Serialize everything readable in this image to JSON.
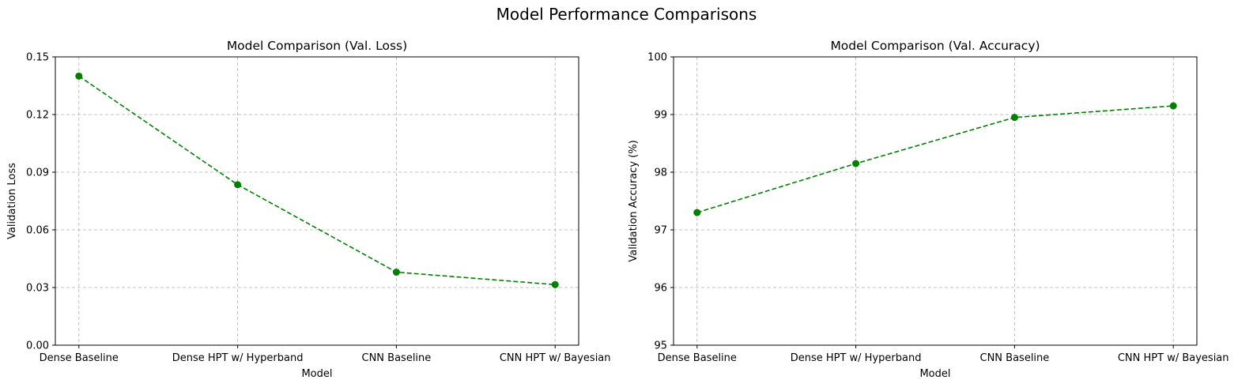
{
  "suptitle": "Model Performance Comparisons",
  "chart_data": [
    {
      "type": "line",
      "title": "Model Comparison (Val. Loss)",
      "xlabel": "Model",
      "ylabel": "Validation Loss",
      "categories": [
        "Dense Baseline",
        "Dense HPT w/ Hyperband",
        "CNN Baseline",
        "CNN HPT w/ Bayesian"
      ],
      "values": [
        0.14,
        0.0835,
        0.038,
        0.0315
      ],
      "ylim": [
        0,
        0.15
      ],
      "yticks": [
        0.0,
        0.03,
        0.06,
        0.09,
        0.12,
        0.15
      ],
      "ytick_labels": [
        "0.00",
        "0.03",
        "0.06",
        "0.09",
        "0.12",
        "0.15"
      ],
      "grid": true,
      "line_style": "dashed",
      "marker": "circle",
      "color": "#008000"
    },
    {
      "type": "line",
      "title": "Model Comparison (Val. Accuracy)",
      "xlabel": "Model",
      "ylabel": "Validation Accuracy (%)",
      "categories": [
        "Dense Baseline",
        "Dense HPT w/ Hyperband",
        "CNN Baseline",
        "CNN HPT w/ Bayesian"
      ],
      "values": [
        97.3,
        98.15,
        98.95,
        99.15
      ],
      "ylim": [
        95,
        100
      ],
      "yticks": [
        95,
        96,
        97,
        98,
        99,
        100
      ],
      "ytick_labels": [
        "95",
        "96",
        "97",
        "98",
        "99",
        "100"
      ],
      "grid": true,
      "line_style": "dashed",
      "marker": "circle",
      "color": "#008000"
    }
  ]
}
